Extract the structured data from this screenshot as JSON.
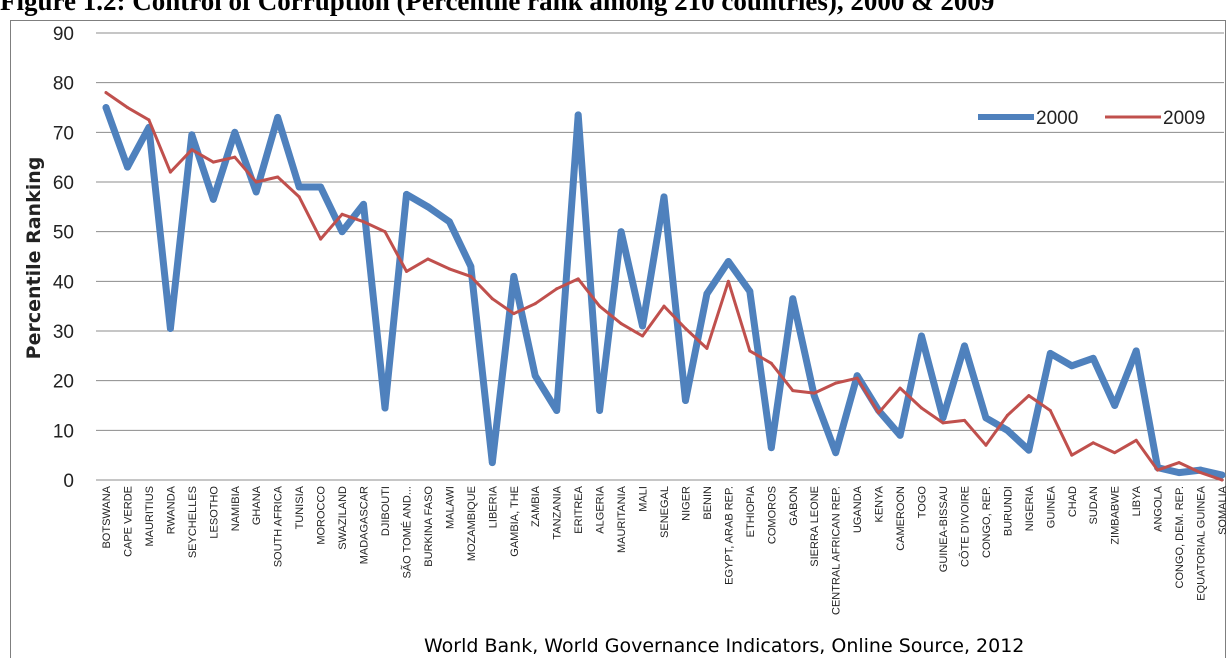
{
  "figure_title": "Figure 1.2: Control of Corruption (Percentile rank among 210 countries), 2000 & 2009",
  "colors": {
    "series_2000": "#4f81bd",
    "series_2009": "#c0504d",
    "grid": "#8c8c8c"
  },
  "chart_data": {
    "type": "line",
    "title": "",
    "xlabel": "World Bank, World Governance Indicators, Online Source, 2012",
    "ylabel": "Percentile Ranking",
    "ylim": [
      0,
      90
    ],
    "yticks": [
      0,
      10,
      20,
      30,
      40,
      50,
      60,
      70,
      80,
      90
    ],
    "grid": "horizontal",
    "legend_position": "top-right",
    "categories": [
      "BOTSWANA",
      "CAPE VERDE",
      "MAURITIUS",
      "RWANDA",
      "SEYCHELLES",
      "LESOTHO",
      "NAMIBIA",
      "GHANA",
      "SOUTH AFRICA",
      "TUNISIA",
      "MOROCCO",
      "SWAZILAND",
      "MADAGASCAR",
      "DJIBOUTI",
      "SÃO TOMÉ AND...",
      "BURKINA FASO",
      "MALAWI",
      "MOZAMBIQUE",
      "LIBERIA",
      "GAMBIA, THE",
      "ZAMBIA",
      "TANZANIA",
      "ERITREA",
      "ALGERIA",
      "MAURITANIA",
      "MALI",
      "SENEGAL",
      "NIGER",
      "BENIN",
      "EGYPT, ARAB REP.",
      "ETHIOPIA",
      "COMOROS",
      "GABON",
      "SIERRA LEONE",
      "CENTRAL AFRICAN REP.",
      "UGANDA",
      "KENYA",
      "CAMEROON",
      "TOGO",
      "GUINEA-BISSAU",
      "CÔTE D'IVOIRE",
      "CONGO, REP.",
      "BURUNDI",
      "NIGERIA",
      "GUINEA",
      "CHAD",
      "SUDAN",
      "ZIMBABWE",
      "LIBYA",
      "ANGOLA",
      "CONGO, DEM. REP.",
      "EQUATORIAL GUINEA",
      "SOMALIA"
    ],
    "series": [
      {
        "name": "2000",
        "values": [
          75,
          63,
          71,
          30.5,
          69.5,
          56.5,
          70,
          58,
          73,
          59,
          59,
          50,
          55.5,
          14.5,
          57.5,
          55,
          52,
          43,
          3.5,
          41,
          21,
          14,
          73.5,
          14,
          50,
          31,
          57,
          16,
          37.5,
          44,
          38,
          6.5,
          36.5,
          17,
          5.5,
          21,
          14,
          9,
          29,
          12.5,
          27,
          12.5,
          10,
          6,
          25.5,
          23,
          24.5,
          15,
          26,
          2.5,
          1.5,
          2,
          1
        ]
      },
      {
        "name": "2009",
        "values": [
          78,
          75,
          72.5,
          62,
          66.5,
          64,
          65,
          60,
          61,
          57,
          48.5,
          53.5,
          52,
          50,
          42,
          44.5,
          42.5,
          41,
          36.5,
          33.5,
          35.5,
          38.5,
          40.5,
          35,
          31.5,
          29,
          35,
          30.5,
          26.5,
          40,
          26,
          23.5,
          18,
          17.5,
          19.5,
          20.5,
          13.5,
          18.5,
          14.5,
          11.5,
          12,
          7,
          13,
          17,
          14,
          5,
          7.5,
          5.5,
          8,
          2,
          3.5,
          1.5,
          0
        ]
      }
    ]
  }
}
